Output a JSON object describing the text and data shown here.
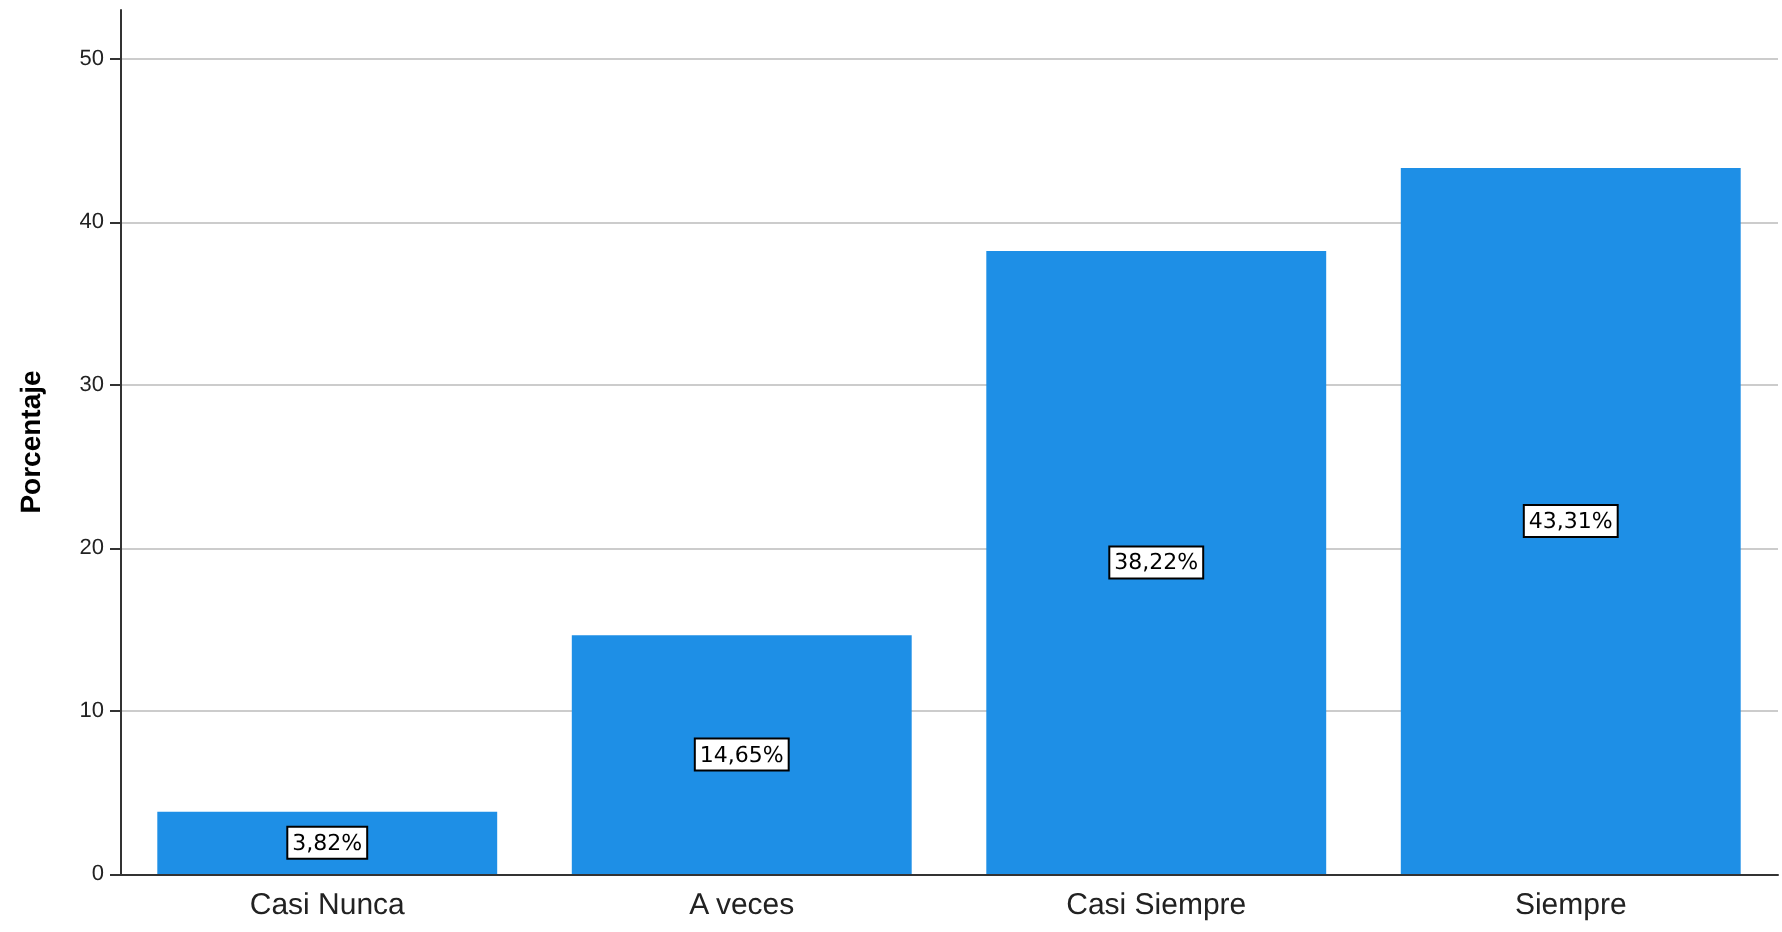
{
  "chart_data": {
    "type": "bar",
    "ylabel": "Porcentaje",
    "categories": [
      "Casi Nunca",
      "A veces",
      "Casi Siempre",
      "Siempre"
    ],
    "values": [
      3.82,
      14.65,
      38.22,
      43.31
    ],
    "value_labels": [
      "3,82%",
      "14,65%",
      "38,22%",
      "43,31%"
    ],
    "color": "#1e8fe6",
    "ylim": [
      0,
      53
    ],
    "yticks": [
      0,
      10,
      20,
      30,
      40,
      50
    ],
    "grid": "y"
  }
}
